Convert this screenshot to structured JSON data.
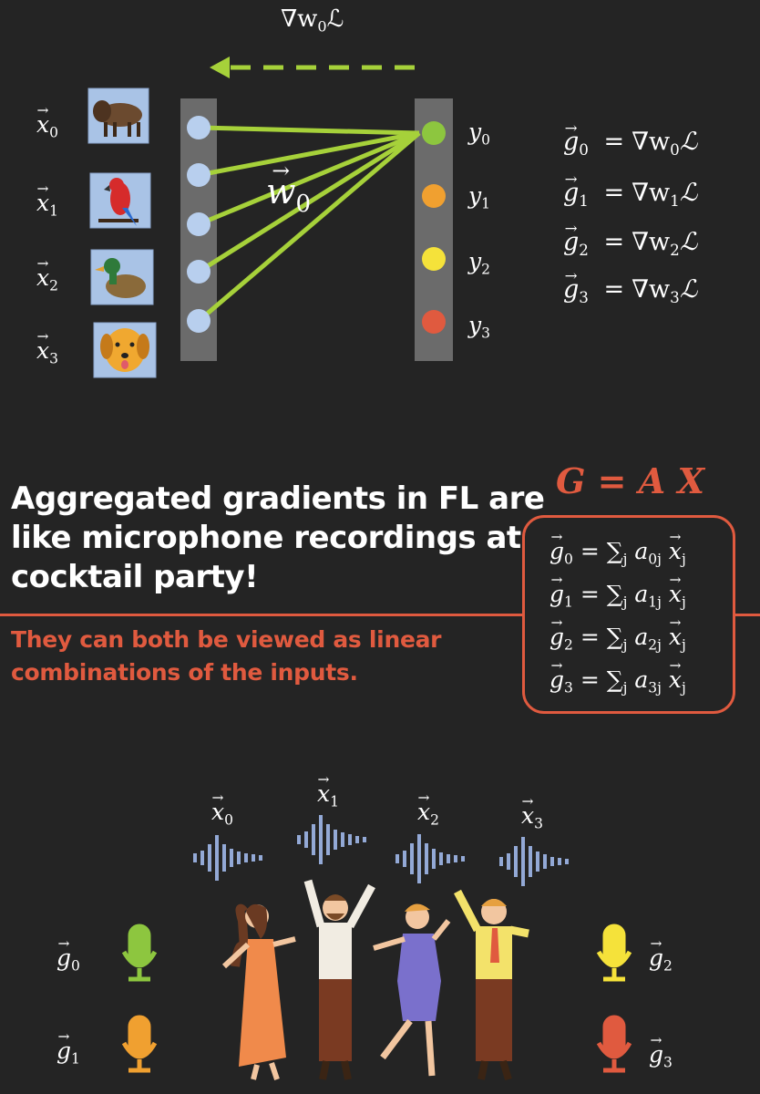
{
  "top": {
    "gradient_label": "∇",
    "w0_label": "w",
    "loss_symbol": "ℒ",
    "weight_vector_label": "w",
    "weight_vector_sub": "0"
  },
  "inputs": [
    {
      "symbol": "x",
      "sub": "0",
      "icon": "bison-icon"
    },
    {
      "symbol": "x",
      "sub": "1",
      "icon": "parrot-icon"
    },
    {
      "symbol": "x",
      "sub": "2",
      "icon": "duck-icon"
    },
    {
      "symbol": "x",
      "sub": "3",
      "icon": "dog-icon"
    }
  ],
  "outputs": [
    {
      "symbol": "y",
      "sub": "0",
      "color": "#8dc63f"
    },
    {
      "symbol": "y",
      "sub": "1",
      "color": "#f0a030"
    },
    {
      "symbol": "y",
      "sub": "2",
      "color": "#f5e23a"
    },
    {
      "symbol": "y",
      "sub": "3",
      "color": "#e05a3f"
    }
  ],
  "gradient_equations": [
    {
      "g": "g",
      "sub": "0",
      "eq": "=",
      "nabla": "∇",
      "w": "w",
      "wsub": "0",
      "loss": "ℒ"
    },
    {
      "g": "g",
      "sub": "1",
      "eq": "=",
      "nabla": "∇",
      "w": "w",
      "wsub": "1",
      "loss": "ℒ"
    },
    {
      "g": "g",
      "sub": "2",
      "eq": "=",
      "nabla": "∇",
      "w": "w",
      "wsub": "2",
      "loss": "ℒ"
    },
    {
      "g": "g",
      "sub": "3",
      "eq": "=",
      "nabla": "∇",
      "w": "w",
      "wsub": "3",
      "loss": "ℒ"
    }
  ],
  "headline": "Aggregated gradients in FL are like microphone recordings at a cocktail party!",
  "subline": "They can both be viewed as linear combinations of the inputs.",
  "matrix_eq": "G = A X",
  "sum_equations": [
    {
      "g": "g",
      "sub": "0",
      "rest": "= ∑",
      "j": "j",
      "a": "a",
      "asub": "0j",
      "x": "x",
      "xsub": "j"
    },
    {
      "g": "g",
      "sub": "1",
      "rest": "= ∑",
      "j": "j",
      "a": "a",
      "asub": "1j",
      "x": "x",
      "xsub": "j"
    },
    {
      "g": "g",
      "sub": "2",
      "rest": "= ∑",
      "j": "j",
      "a": "a",
      "asub": "2j",
      "x": "x",
      "xsub": "j"
    },
    {
      "g": "g",
      "sub": "3",
      "rest": "= ∑",
      "j": "j",
      "a": "a",
      "asub": "3j",
      "x": "x",
      "xsub": "j"
    }
  ],
  "party": {
    "voices": [
      {
        "symbol": "x",
        "sub": "0"
      },
      {
        "symbol": "x",
        "sub": "1"
      },
      {
        "symbol": "x",
        "sub": "2"
      },
      {
        "symbol": "x",
        "sub": "3"
      }
    ],
    "mics": [
      {
        "symbol": "g",
        "sub": "0",
        "color": "#8dc63f"
      },
      {
        "symbol": "g",
        "sub": "1",
        "color": "#f0a030"
      },
      {
        "symbol": "g",
        "sub": "2",
        "color": "#f5e23a"
      },
      {
        "symbol": "g",
        "sub": "3",
        "color": "#e05a3f"
      }
    ]
  },
  "colors": {
    "accent_red": "#e05a3f",
    "arrow_green": "#a6d13a",
    "node_blue": "#b8cfee",
    "column_gray": "#6b6b6b",
    "wave_blue": "#93a9d6"
  }
}
